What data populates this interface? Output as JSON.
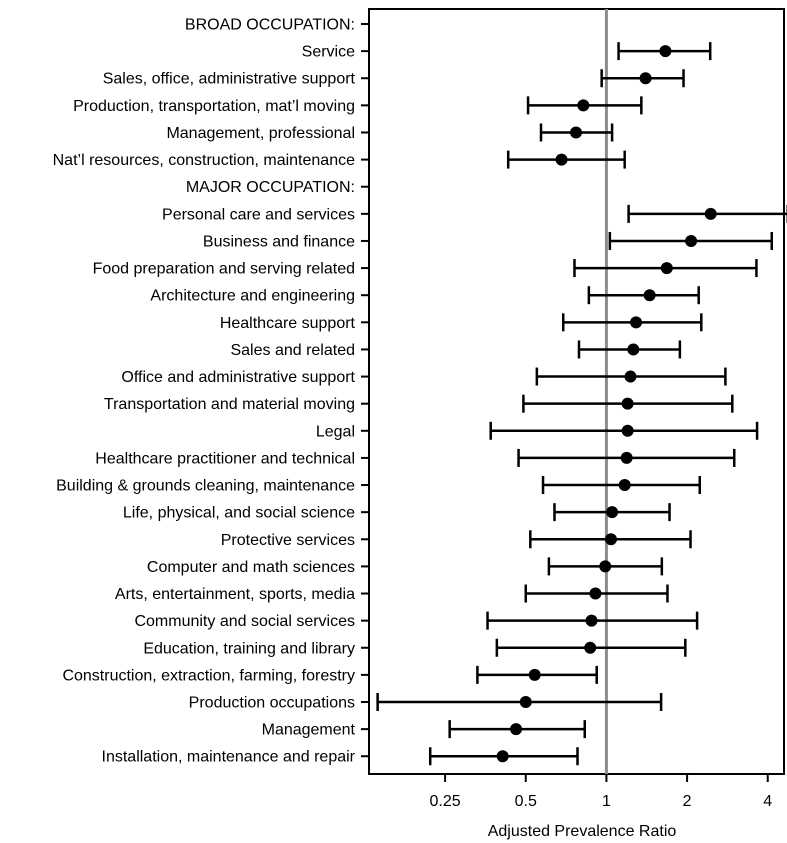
{
  "chart_data": {
    "type": "forest",
    "xlabel": "Adjusted Prevalence Ratio",
    "x_scale": "log",
    "xlim": [
      0.13,
      4.6
    ],
    "x_ticks": [
      {
        "value": 0.25,
        "label": "0.25"
      },
      {
        "value": 0.5,
        "label": "0.5"
      },
      {
        "value": 1,
        "label": "1"
      },
      {
        "value": 2,
        "label": "2"
      },
      {
        "value": 4,
        "label": "4"
      }
    ],
    "reference_line": 1,
    "colors": {
      "marker": "#000000",
      "reference_line": "#8c8c8c",
      "frame": "#000000"
    },
    "rows": [
      {
        "label": "BROAD OCCUPATION:",
        "header": true
      },
      {
        "label": "Service",
        "estimate": 1.66,
        "ci": [
          1.11,
          2.44
        ]
      },
      {
        "label": "Sales, office, administrative support",
        "estimate": 1.4,
        "ci": [
          0.96,
          1.94
        ]
      },
      {
        "label": "Production, transportation, mat’l moving",
        "estimate": 0.82,
        "ci": [
          0.51,
          1.35
        ]
      },
      {
        "label": "Management, professional",
        "estimate": 0.77,
        "ci": [
          0.57,
          1.05
        ]
      },
      {
        "label": "Nat’l resources, construction, maintenance",
        "estimate": 0.68,
        "ci": [
          0.43,
          1.17
        ]
      },
      {
        "label": "MAJOR OCCUPATION:",
        "header": true
      },
      {
        "label": "Personal care and services",
        "estimate": 2.45,
        "ci": [
          1.21,
          4.75
        ]
      },
      {
        "label": "Business and finance",
        "estimate": 2.07,
        "ci": [
          1.03,
          4.14
        ]
      },
      {
        "label": "Food preparation and serving related",
        "estimate": 1.68,
        "ci": [
          0.76,
          3.63
        ]
      },
      {
        "label": "Architecture and engineering",
        "estimate": 1.45,
        "ci": [
          0.86,
          2.21
        ]
      },
      {
        "label": "Healthcare support",
        "estimate": 1.29,
        "ci": [
          0.69,
          2.26
        ]
      },
      {
        "label": "Sales and related",
        "estimate": 1.26,
        "ci": [
          0.79,
          1.88
        ]
      },
      {
        "label": "Office and administrative support",
        "estimate": 1.23,
        "ci": [
          0.55,
          2.78
        ]
      },
      {
        "label": "Transportation and material moving",
        "estimate": 1.2,
        "ci": [
          0.49,
          2.95
        ]
      },
      {
        "label": "Legal",
        "estimate": 1.2,
        "ci": [
          0.37,
          3.65
        ]
      },
      {
        "label": "Healthcare practitioner and technical",
        "estimate": 1.19,
        "ci": [
          0.47,
          3.0
        ]
      },
      {
        "label": "Building & grounds cleaning, maintenance",
        "estimate": 1.17,
        "ci": [
          0.58,
          2.23
        ]
      },
      {
        "label": "Life, physical, and social science",
        "estimate": 1.05,
        "ci": [
          0.64,
          1.72
        ]
      },
      {
        "label": "Protective services",
        "estimate": 1.04,
        "ci": [
          0.52,
          2.06
        ]
      },
      {
        "label": "Computer and math sciences",
        "estimate": 0.99,
        "ci": [
          0.61,
          1.61
        ]
      },
      {
        "label": "Arts, entertainment, sports, media",
        "estimate": 0.91,
        "ci": [
          0.5,
          1.69
        ]
      },
      {
        "label": "Community and social services",
        "estimate": 0.88,
        "ci": [
          0.36,
          2.18
        ]
      },
      {
        "label": "Education, training and library",
        "estimate": 0.87,
        "ci": [
          0.39,
          1.97
        ]
      },
      {
        "label": "Construction, extraction, farming, forestry",
        "estimate": 0.54,
        "ci": [
          0.33,
          0.92
        ]
      },
      {
        "label": "Production occupations",
        "estimate": 0.5,
        "ci": [
          0.14,
          1.6
        ]
      },
      {
        "label": "Management",
        "estimate": 0.46,
        "ci": [
          0.26,
          0.83
        ]
      },
      {
        "label": "Installation, maintenance and repair",
        "estimate": 0.41,
        "ci": [
          0.22,
          0.78
        ]
      }
    ]
  }
}
